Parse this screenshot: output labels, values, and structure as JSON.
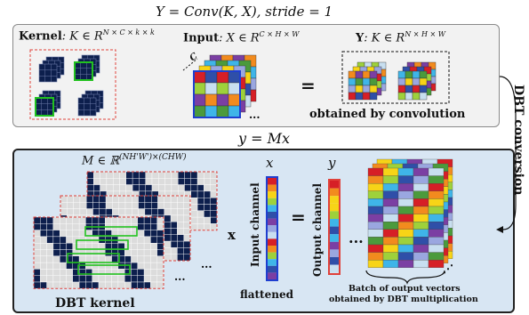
{
  "top": {
    "title": "Y = Conv(K, X), stride = 1",
    "kernel_label": "Kernel",
    "kernel_expr": ": K ∈ R",
    "kernel_sup": "N × C × k × k",
    "input_label": "Input",
    "input_expr": ": X ∈ R",
    "input_sup": "C × H × W",
    "output_label": "Y",
    "output_expr": ": K ∈ R",
    "output_sup": "N × H × W",
    "channel_letter": "C",
    "equals": "=",
    "output_caption": "obtained by convolution"
  },
  "side": {
    "conversion_label": "DBT conversion"
  },
  "bottom": {
    "title": "y = Mx",
    "matrix_expr": "M ∈ ℝ",
    "matrix_sup": "(NH'W')×(CHW)",
    "x_symbol": "x",
    "y_symbol": "y",
    "times": "x",
    "equals": "=",
    "ellipsis": "···",
    "input_channel_label": "Input channel",
    "output_channel_label": "Output channel",
    "flattened_label": "flattened",
    "dbt_kernel_label": "DBT kernel",
    "batch_caption_1": "Batch of output  vectors",
    "batch_caption_2": "obtained by  DBT  multiplication"
  },
  "colors": {
    "navy": "#0d1f4d",
    "light_cell": "#dcdcdc",
    "green_outline": "#22c21f",
    "red_dashed": "#e0413a",
    "blue_border": "#1f3fd0",
    "top_bg": "#f2f2f2",
    "bottom_bg": "#d8e6f3"
  },
  "palette": [
    "#d61f26",
    "#f28b1e",
    "#f7d417",
    "#9ed13b",
    "#3fb5e8",
    "#2f4fa8",
    "#7b3fa3",
    "#9aa7e0",
    "#c8dff0",
    "#4b9a3c"
  ]
}
